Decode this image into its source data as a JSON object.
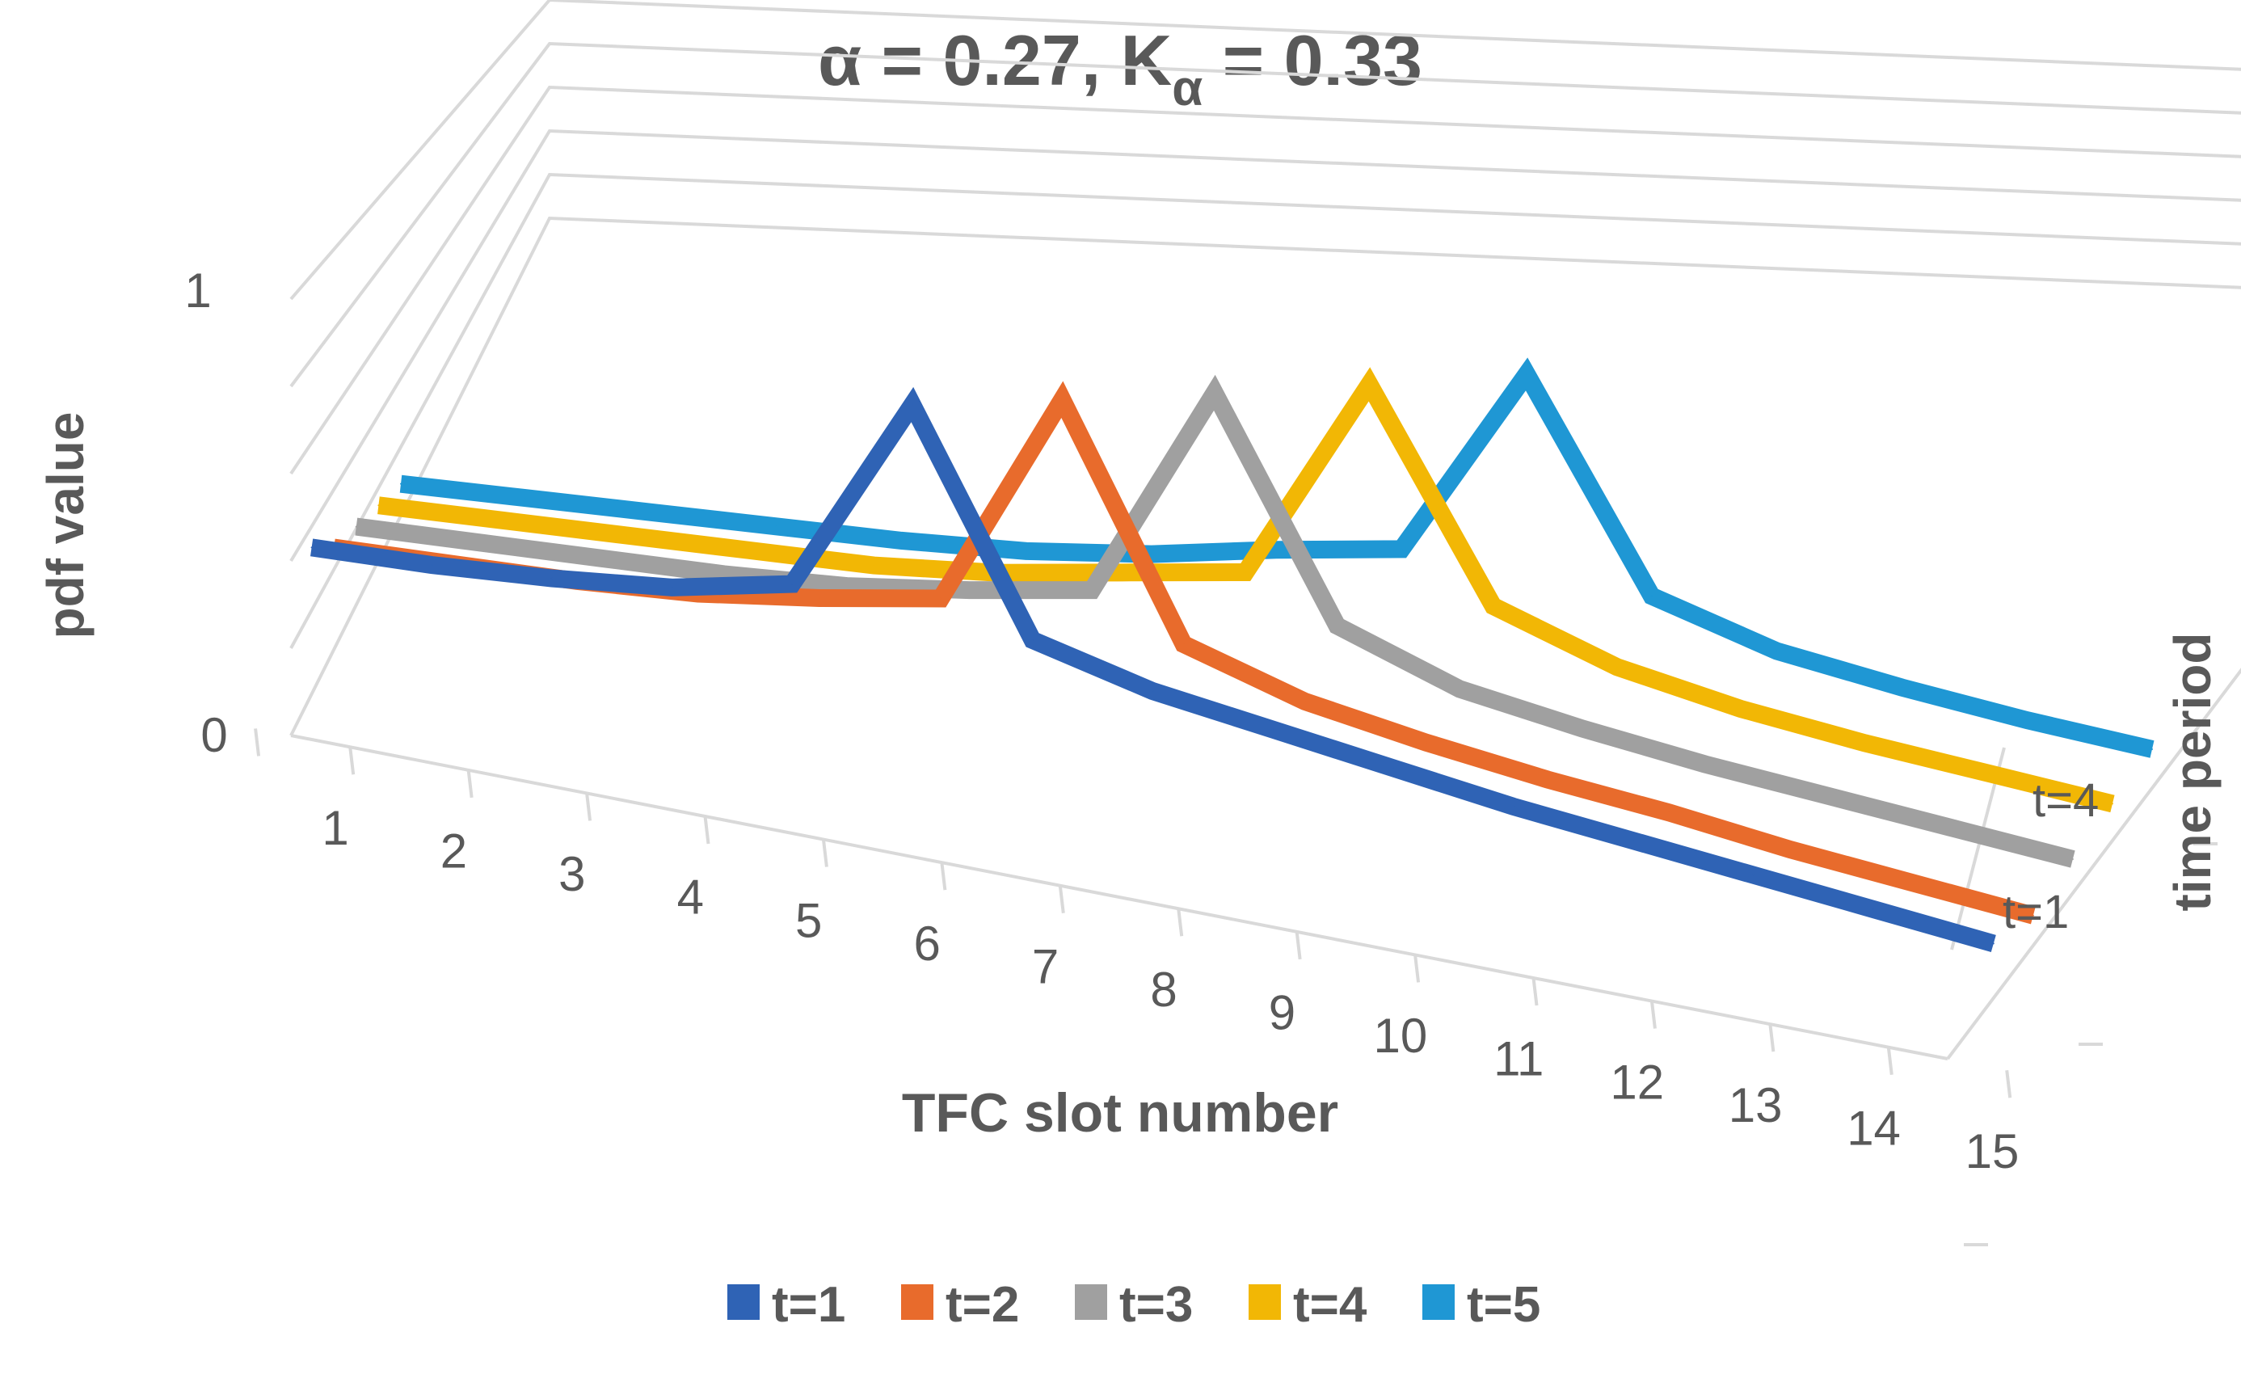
{
  "chart_data": {
    "type": "line",
    "subtype": "3d-line",
    "title": {
      "prefix": "α = 0.27, K",
      "subscript": "α",
      "suffix": " = 0.33"
    },
    "xlabel": "TFC slot number",
    "ylabel": "pdf value",
    "zlabel": "time period",
    "categories": [
      "1",
      "2",
      "3",
      "4",
      "5",
      "6",
      "7",
      "8",
      "9",
      "10",
      "11",
      "12",
      "13",
      "14",
      "15"
    ],
    "y_ticks": [
      "0",
      "1"
    ],
    "ylim": [
      0,
      1
    ],
    "z_ticks": [
      "t=1",
      "t=4"
    ],
    "legend_position": "bottom",
    "series": [
      {
        "name": "t=1",
        "color": "#2f63b5",
        "values": [
          0.35,
          0.36,
          0.38,
          0.41,
          0.47,
          0.95,
          0.44,
          0.37,
          0.33,
          0.29,
          0.25,
          0.22,
          0.19,
          0.16,
          0.13
        ]
      },
      {
        "name": "t=2",
        "color": "#e86b2c",
        "values": [
          0.29,
          0.3,
          0.31,
          0.33,
          0.37,
          0.42,
          0.96,
          0.41,
          0.32,
          0.27,
          0.23,
          0.2,
          0.16,
          0.13,
          0.1
        ]
      },
      {
        "name": "t=3",
        "color": "#a0a0a0",
        "values": [
          0.28,
          0.29,
          0.3,
          0.31,
          0.33,
          0.37,
          0.42,
          0.97,
          0.43,
          0.32,
          0.27,
          0.23,
          0.2,
          0.17,
          0.14
        ]
      },
      {
        "name": "t=4",
        "color": "#f2b705",
        "values": [
          0.27,
          0.28,
          0.29,
          0.3,
          0.31,
          0.34,
          0.39,
          0.44,
          0.98,
          0.45,
          0.34,
          0.28,
          0.24,
          0.21,
          0.18
        ]
      },
      {
        "name": "t=5",
        "color": "#1f97d4",
        "values": [
          0.26,
          0.27,
          0.28,
          0.29,
          0.3,
          0.32,
          0.36,
          0.42,
          0.47,
          0.99,
          0.44,
          0.34,
          0.29,
          0.25,
          0.22
        ]
      }
    ]
  }
}
